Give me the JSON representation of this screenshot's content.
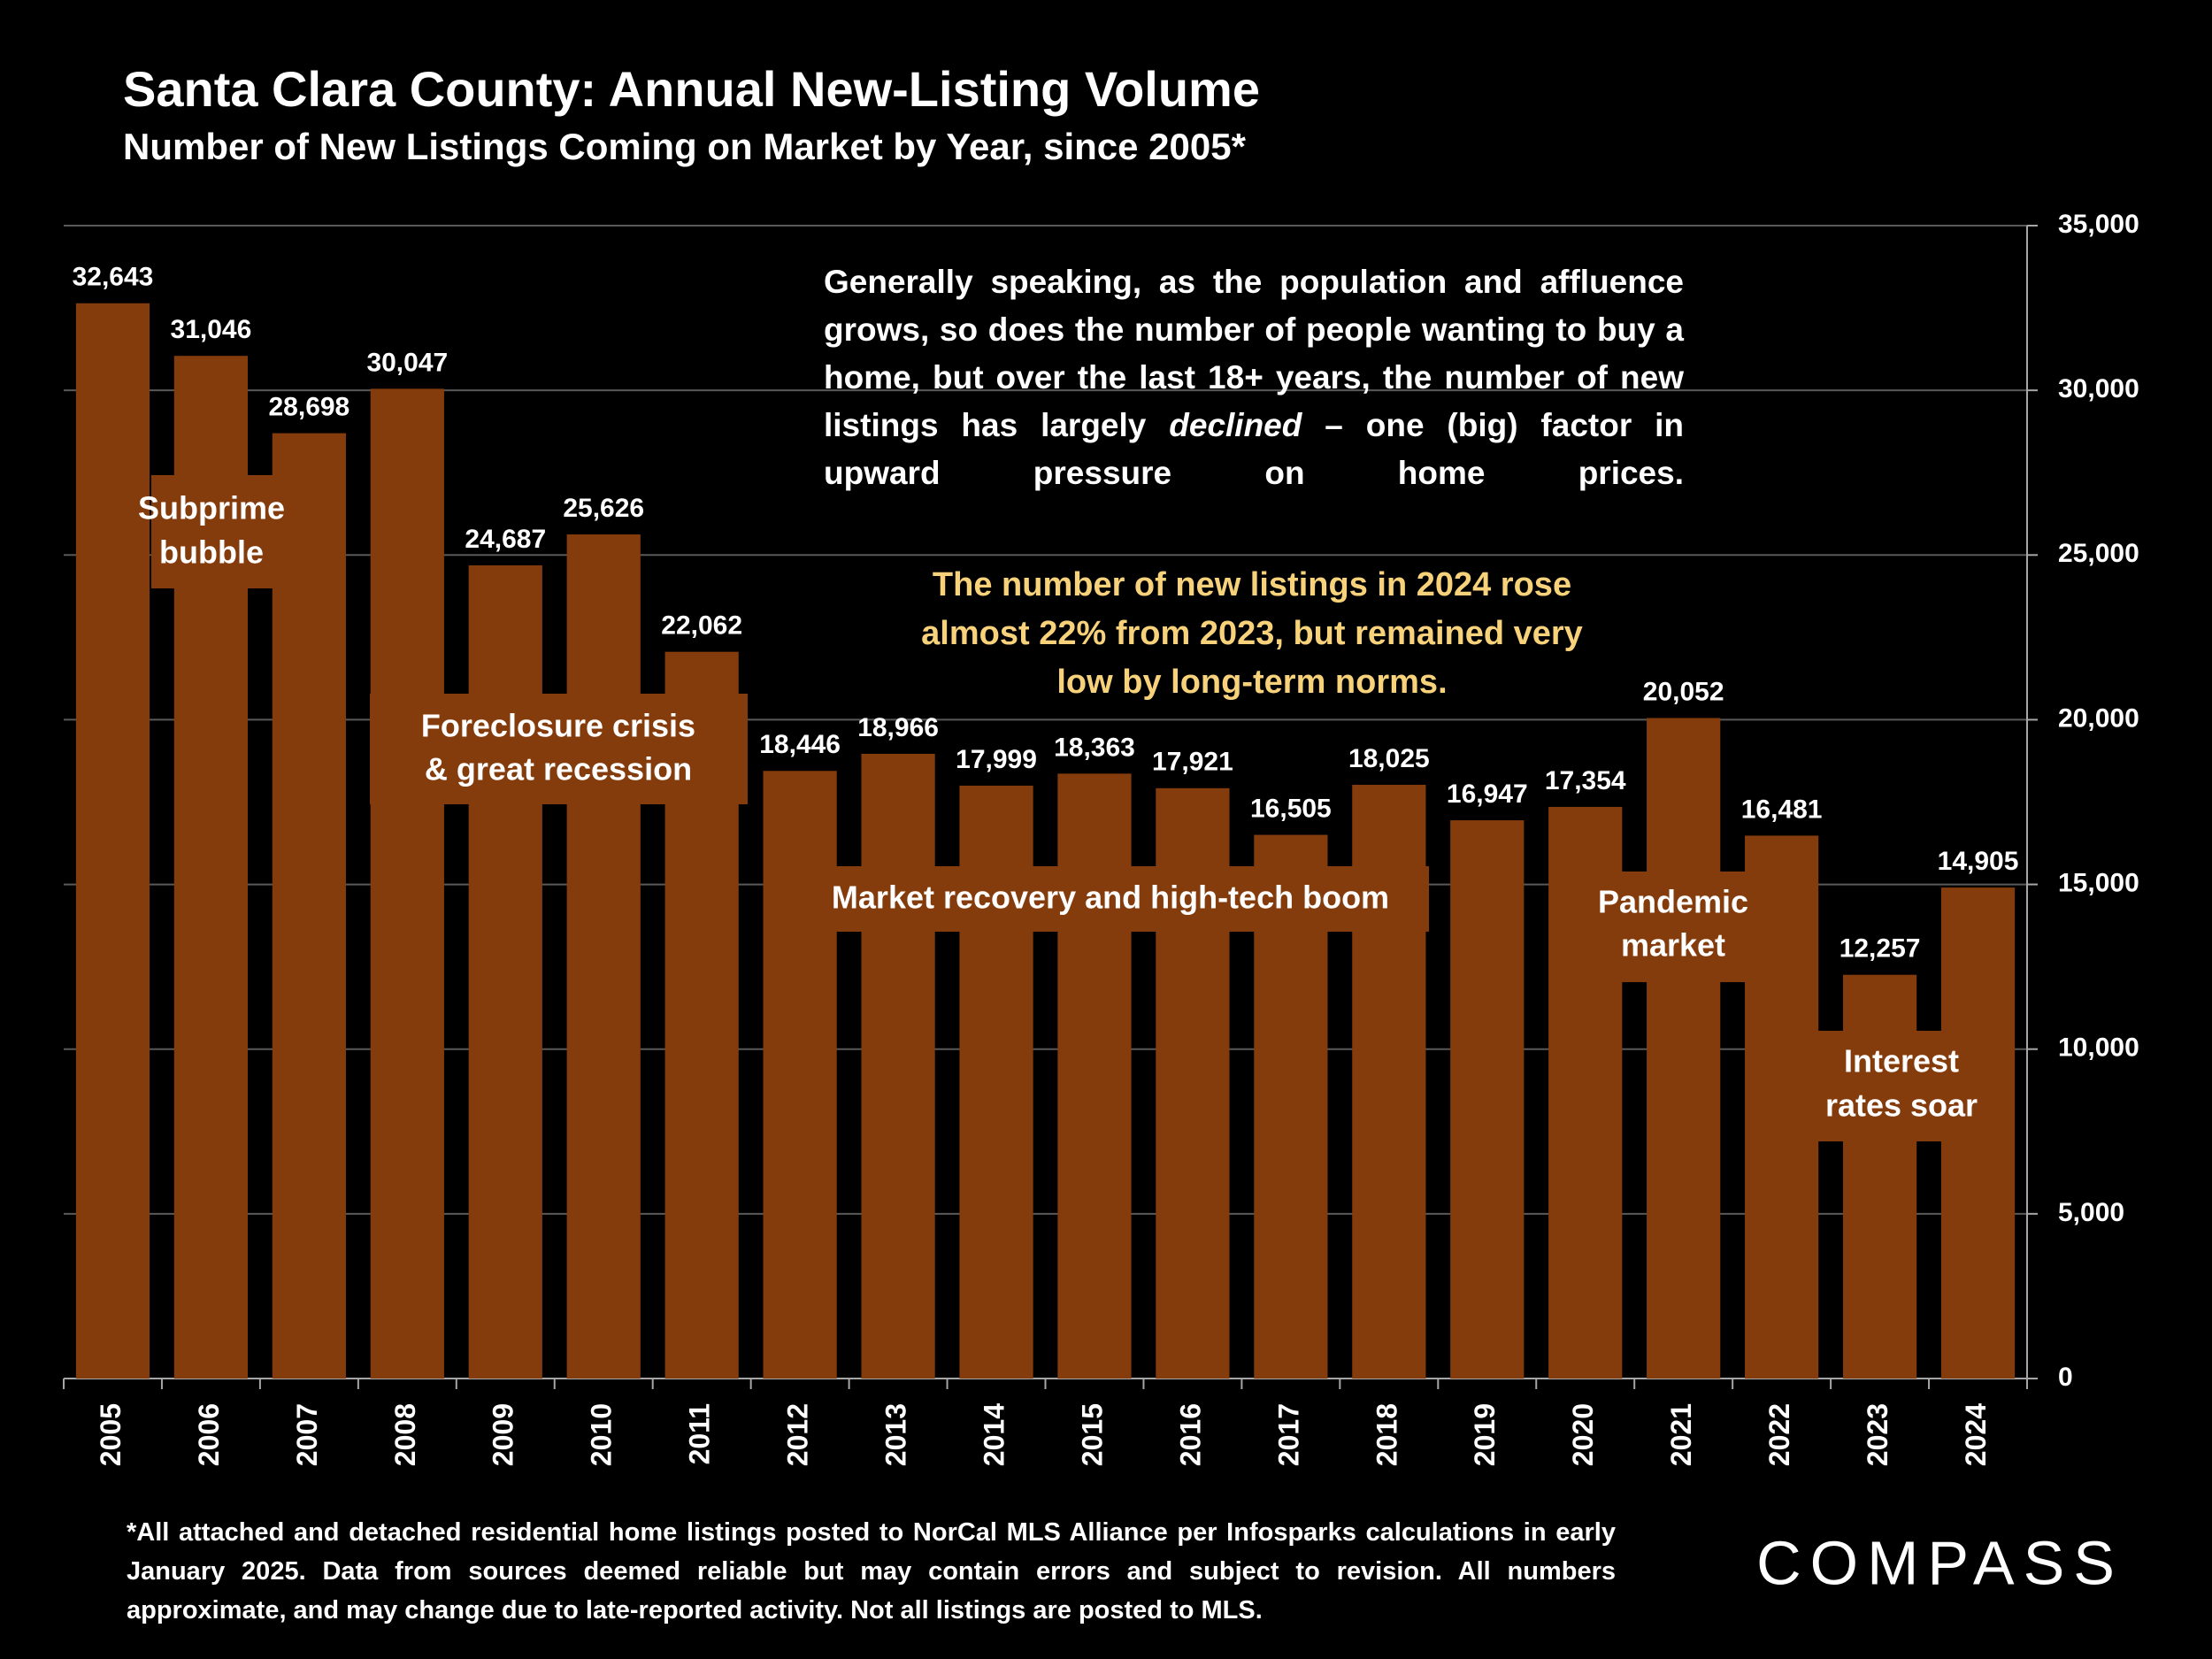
{
  "chart_data": {
    "type": "bar",
    "title": "Santa Clara County: Annual New-Listing Volume",
    "subtitle": "Number of New Listings Coming on Market by Year, since 2005*",
    "categories": [
      "2005",
      "2006",
      "2007",
      "2008",
      "2009",
      "2010",
      "2011",
      "2012",
      "2013",
      "2014",
      "2015",
      "2016",
      "2017",
      "2018",
      "2019",
      "2020",
      "2021",
      "2022",
      "2023",
      "2024"
    ],
    "values": [
      32643,
      31046,
      28698,
      30047,
      24687,
      25626,
      22062,
      18446,
      18966,
      17999,
      18363,
      17921,
      16505,
      18025,
      16947,
      17354,
      20052,
      16481,
      12257,
      14905
    ],
    "value_labels": [
      "32,643",
      "31,046",
      "28,698",
      "30,047",
      "24,687",
      "25,626",
      "22,062",
      "18,446",
      "18,966",
      "17,999",
      "18,363",
      "17,921",
      "16,505",
      "18,025",
      "16,947",
      "17,354",
      "20,052",
      "16,481",
      "12,257",
      "14,905"
    ],
    "color": "#843c0c",
    "ylim": [
      0,
      35000
    ],
    "yticks": [
      0,
      {
        "value": 5000,
        "label": "5,000"
      },
      {
        "value": 10000,
        "label": "10,000"
      },
      {
        "value": 15000,
        "label": "15,000"
      },
      {
        "value": 20000,
        "label": "20,000"
      },
      {
        "value": 25000,
        "label": "25,000"
      },
      {
        "value": 30000,
        "label": "30,000"
      },
      {
        "value": 35000,
        "label": "35,000"
      }
    ],
    "grid": true,
    "annotations": [
      {
        "lines": [
          "Subprime",
          "bubble"
        ]
      },
      {
        "lines": [
          "Foreclosure crisis",
          "& great recession"
        ]
      },
      {
        "lines": [
          "Market recovery and high-tech boom"
        ]
      },
      {
        "lines": [
          "Pandemic",
          "market"
        ]
      },
      {
        "lines": [
          "Interest",
          "rates soar"
        ]
      }
    ],
    "note": {
      "before": "Generally speaking, as the population and affluence grows, so does the number of people wanting to buy a home, but over the last 18+ years, the number of new listings has largely ",
      "emphasis": "declined",
      "after": " – one (big) factor in upward pressure on home prices."
    },
    "highlight": [
      "The number of new listings in 2024 rose",
      "almost 22% from 2023, but remained very",
      "low by long-term norms."
    ],
    "footnote": "*All attached and detached residential home listings posted to NorCal MLS Alliance per Infosparks calculations in early January 2025. Data from sources deemed reliable but may contain errors and subject to revision. All numbers approximate, and may change due to late-reported activity. Not all listings are posted to MLS.",
    "logo": "COMPASS"
  }
}
